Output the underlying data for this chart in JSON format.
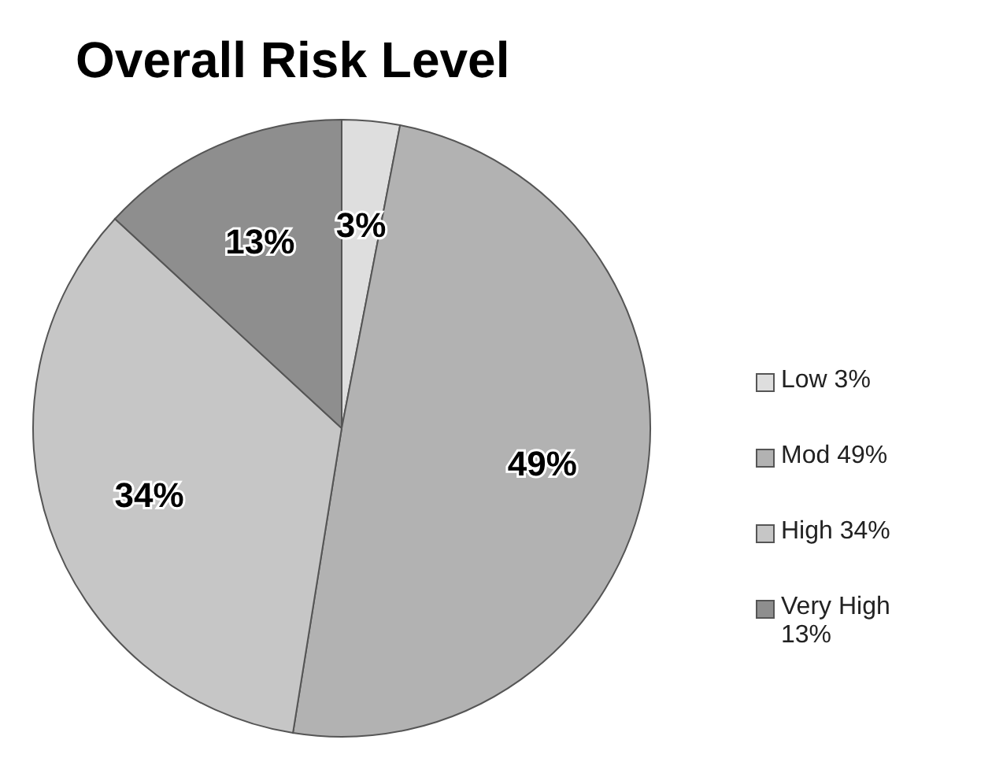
{
  "chart_data": {
    "type": "pie",
    "title": "Overall Risk Level",
    "categories": [
      "Low 3%",
      "Mod 49%",
      "High 34%",
      "Very High 13%"
    ],
    "values": [
      3,
      49,
      34,
      13
    ],
    "colors": [
      "#dedede",
      "#b2b2b2",
      "#c6c6c6",
      "#8e8e8e"
    ],
    "value_labels": [
      "3%",
      "49%",
      "34%",
      "13%"
    ],
    "legend": "right"
  }
}
